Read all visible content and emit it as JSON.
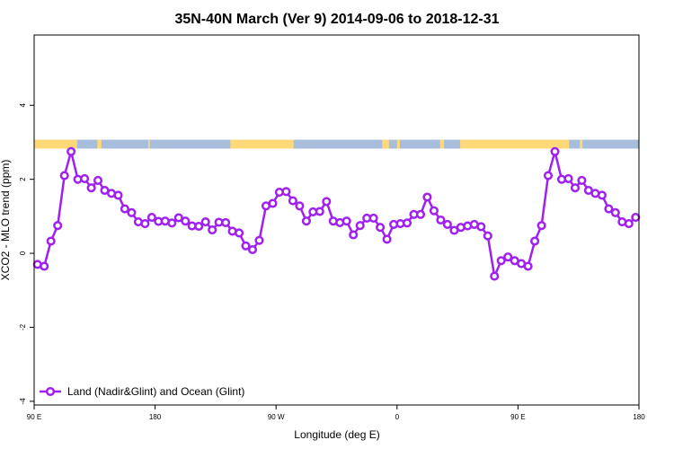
{
  "chart_data": {
    "type": "line",
    "title": "35N-40N March (Ver 9)   2014-09-06 to 2018-12-31",
    "xlabel": "Longitude (deg E)",
    "ylabel": "XCO2 - MLO trend (ppm)",
    "xlim": [
      90,
      540
    ],
    "ylim": [
      -4.1,
      5.9
    ],
    "x_ticks": [
      {
        "value": 90,
        "label": "90 E"
      },
      {
        "value": 180,
        "label": "180"
      },
      {
        "value": 270,
        "label": "90 W"
      },
      {
        "value": 360,
        "label": "0"
      },
      {
        "value": 450,
        "label": "90 E"
      },
      {
        "value": 540,
        "label": "180"
      }
    ],
    "y_ticks": [
      {
        "value": -4,
        "label": "-4"
      },
      {
        "value": -2,
        "label": "-2"
      },
      {
        "value": 0,
        "label": "0"
      },
      {
        "value": 2,
        "label": "2"
      },
      {
        "value": 4,
        "label": "4"
      }
    ],
    "grid": false,
    "legend_position": "bottom-left",
    "series": [
      {
        "name": "Land (Nadir&Glint) and Ocean (Glint)",
        "color": "#a020f0",
        "x": [
          92.5,
          97.5,
          102.5,
          107.5,
          112.5,
          117.5,
          122.5,
          127.5,
          132.5,
          137.5,
          142.5,
          147.5,
          152.5,
          157.5,
          162.5,
          167.5,
          172.5,
          177.5,
          182.5,
          187.5,
          192.5,
          197.5,
          202.5,
          207.5,
          212.5,
          217.5,
          222.5,
          227.5,
          232.5,
          237.5,
          242.5,
          247.5,
          252.5,
          257.5,
          262.5,
          267.5,
          272.5,
          277.5,
          282.5,
          287.5,
          292.5,
          297.5,
          302.5,
          307.5,
          312.5,
          317.5,
          322.5,
          327.5,
          332.5,
          337.5,
          342.5,
          347.5,
          352.5,
          357.5,
          362.5,
          367.5,
          372.5,
          377.5,
          382.5,
          387.5,
          392.5,
          397.5,
          402.5,
          407.5,
          412.5,
          417.5,
          422.5,
          427.5,
          432.5,
          437.5,
          442.5,
          447.5,
          452.5,
          457.5,
          462.5,
          467.5,
          472.5,
          477.5,
          482.5,
          487.5,
          492.5,
          497.5,
          502.5,
          507.5,
          512.5,
          517.5,
          522.5,
          527.5,
          532.5,
          537.5
        ],
        "values": [
          -0.3,
          -0.35,
          0.33,
          0.75,
          2.1,
          2.75,
          2.0,
          2.02,
          1.77,
          1.97,
          1.7,
          1.62,
          1.57,
          1.2,
          1.1,
          0.85,
          0.8,
          0.97,
          0.86,
          0.87,
          0.82,
          0.96,
          0.87,
          0.74,
          0.73,
          0.85,
          0.63,
          0.84,
          0.83,
          0.6,
          0.55,
          0.2,
          0.1,
          0.35,
          1.28,
          1.35,
          1.65,
          1.67,
          1.42,
          1.28,
          0.87,
          1.12,
          1.13,
          1.4,
          0.87,
          0.83,
          0.87,
          0.5,
          0.75,
          0.95,
          0.95,
          0.7,
          0.38,
          0.78,
          0.8,
          0.82,
          1.05,
          1.05,
          1.52,
          1.15,
          0.9,
          0.78,
          0.62,
          0.7,
          0.74,
          0.78,
          0.72,
          0.47,
          -0.62,
          -0.2,
          -0.1,
          -0.2,
          -0.28,
          -0.35,
          0.33,
          0.75,
          2.1,
          2.75,
          2.0,
          2.02,
          1.77,
          1.97,
          1.7,
          1.62,
          1.57,
          1.2,
          1.1,
          0.85,
          0.8,
          0.97
        ]
      }
    ],
    "land_ocean_bar": {
      "y_range": [
        2.83,
        3.07
      ],
      "land_color": "#ffd977",
      "ocean_color": "#a6bddb",
      "land_segments": [
        [
          90,
          122
        ],
        [
          137,
          140
        ],
        [
          175,
          176
        ],
        [
          236,
          283
        ],
        [
          349,
          354
        ],
        [
          360,
          362
        ],
        [
          392,
          395
        ],
        [
          407,
          488
        ],
        [
          496,
          498
        ],
        [
          540,
          540
        ]
      ]
    }
  }
}
